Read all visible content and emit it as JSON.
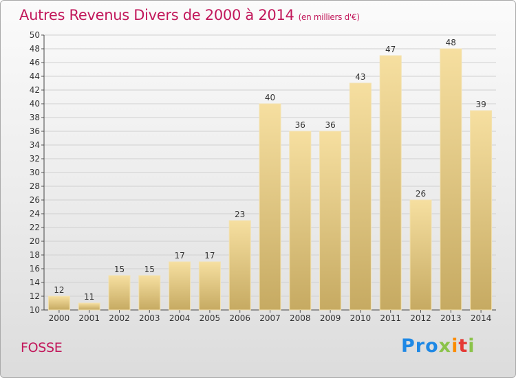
{
  "header": {
    "title": "Autres Revenus Divers de 2000 à 2014",
    "unit": "(en milliers d'€)"
  },
  "footer": {
    "location": "FOSSE",
    "logo": [
      "Pro",
      "x",
      "i",
      "t",
      "i"
    ]
  },
  "colors": {
    "title": "#c2185b",
    "bar_light": "#f6dfa0",
    "bar_dark": "#c6aa62",
    "grid": "#d0d0d0"
  },
  "chart_data": {
    "type": "bar",
    "categories": [
      "2000",
      "2001",
      "2002",
      "2003",
      "2004",
      "2005",
      "2006",
      "2007",
      "2008",
      "2009",
      "2010",
      "2011",
      "2012",
      "2013",
      "2014"
    ],
    "values": [
      12,
      11,
      15,
      15,
      17,
      17,
      23,
      40,
      36,
      36,
      43,
      47,
      26,
      48,
      39
    ],
    "ylim": [
      10,
      50
    ],
    "yticks": [
      10,
      12,
      14,
      16,
      18,
      20,
      22,
      24,
      26,
      28,
      30,
      32,
      34,
      36,
      38,
      40,
      42,
      44,
      46,
      48,
      50
    ],
    "grid": true,
    "data_labels": true
  }
}
